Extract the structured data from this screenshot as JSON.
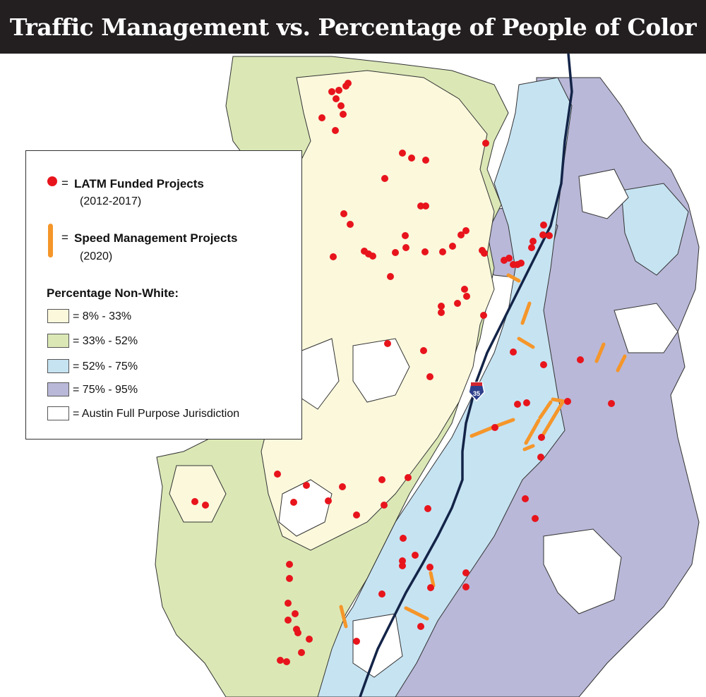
{
  "title": "Traffic Management vs. Percentage of People of Color",
  "colors": {
    "title_bg": "#231f20",
    "band_8_33": "#fbf8dc",
    "band_33_52": "#dbe8b6",
    "band_52_75": "#c6e3f2",
    "band_75_95": "#b9b8d8",
    "jurisdiction": "#ffffff",
    "boundary_line": "#333333",
    "interstate": "#132448",
    "latm_dot": "#e8141c",
    "speed_mgmt": "#f5962a"
  },
  "map": {
    "highway_shield_icon": "interstate-shield-icon",
    "highway_shield_label": "35"
  },
  "legend": {
    "latm": {
      "eq": "=",
      "title": "LATM Funded Projects",
      "years": "(2012-2017)",
      "icon": "red-dot-icon"
    },
    "speed": {
      "eq": "=",
      "title": "Speed Management Projects",
      "years": "(2020)",
      "icon": "orange-bar-icon"
    },
    "pct_title": "Percentage Non-White:",
    "ranges": [
      {
        "label": "= 8% - 33%"
      },
      {
        "label": "= 33% - 52%"
      },
      {
        "label": "= 52% - 75%"
      },
      {
        "label": "= 75% - 95%"
      },
      {
        "label": "= Austin Full Purpose Jurisdiction"
      }
    ]
  }
}
